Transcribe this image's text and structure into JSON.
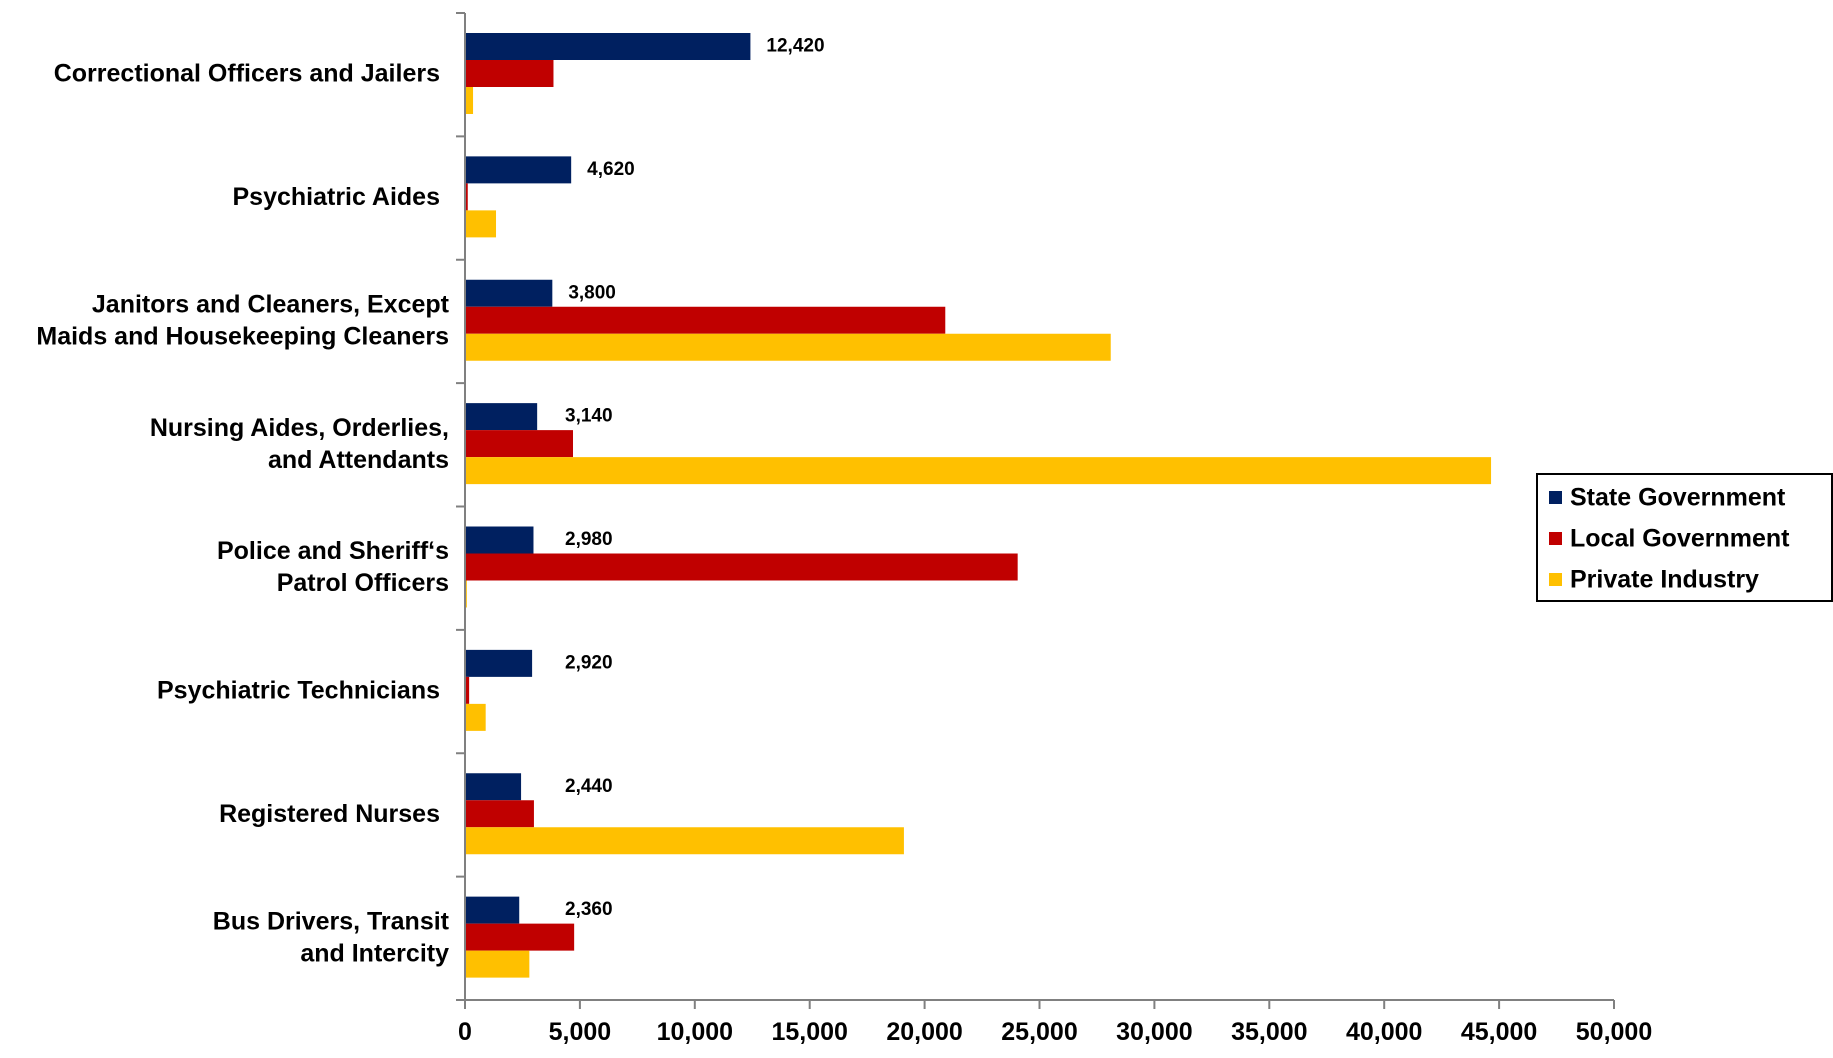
{
  "chart_data": {
    "type": "bar",
    "orientation": "horizontal",
    "categories": [
      [
        "Correctional Officers and Jailers"
      ],
      [
        "Psychiatric Aides"
      ],
      [
        "Janitors and Cleaners, Except",
        "Maids and Housekeeping Cleaners"
      ],
      [
        "Nursing Aides, Orderlies,",
        "and Attendants"
      ],
      [
        "Police and Sheriff‘s",
        "Patrol Officers"
      ],
      [
        "Psychiatric Technicians"
      ],
      [
        "Registered Nurses"
      ],
      [
        "Bus Drivers, Transit",
        "and Intercity"
      ]
    ],
    "series": [
      {
        "name": "State Government",
        "color": "#002060",
        "values": [
          12420,
          4620,
          3800,
          3140,
          2980,
          2920,
          2440,
          2360
        ],
        "data_labels": [
          "12,420",
          "4,620",
          "3,800",
          "3,140",
          "2,980",
          "2,920",
          "2,440",
          "2,360"
        ]
      },
      {
        "name": "Local Government",
        "color": "#C00000",
        "values": [
          3850,
          120,
          20900,
          4700,
          24050,
          180,
          3000,
          4750
        ]
      },
      {
        "name": "Private Industry",
        "color": "#FFC000",
        "values": [
          350,
          1350,
          28100,
          44650,
          80,
          900,
          19100,
          2800
        ]
      }
    ],
    "xlim": [
      0,
      50000
    ],
    "x_ticks": [
      {
        "value": 0,
        "label": "0"
      },
      {
        "value": 5000,
        "label": "5,000"
      },
      {
        "value": 10000,
        "label": "10,000"
      },
      {
        "value": 15000,
        "label": "15,000"
      },
      {
        "value": 20000,
        "label": "20,000"
      },
      {
        "value": 25000,
        "label": "25,000"
      },
      {
        "value": 30000,
        "label": "30,000"
      },
      {
        "value": 35000,
        "label": "35,000"
      },
      {
        "value": 40000,
        "label": "40,000"
      },
      {
        "value": 45000,
        "label": "45,000"
      },
      {
        "value": 50000,
        "label": "50,000"
      }
    ],
    "title": "",
    "xlabel": "",
    "ylabel": "",
    "grid": false,
    "legend_position": "right"
  }
}
